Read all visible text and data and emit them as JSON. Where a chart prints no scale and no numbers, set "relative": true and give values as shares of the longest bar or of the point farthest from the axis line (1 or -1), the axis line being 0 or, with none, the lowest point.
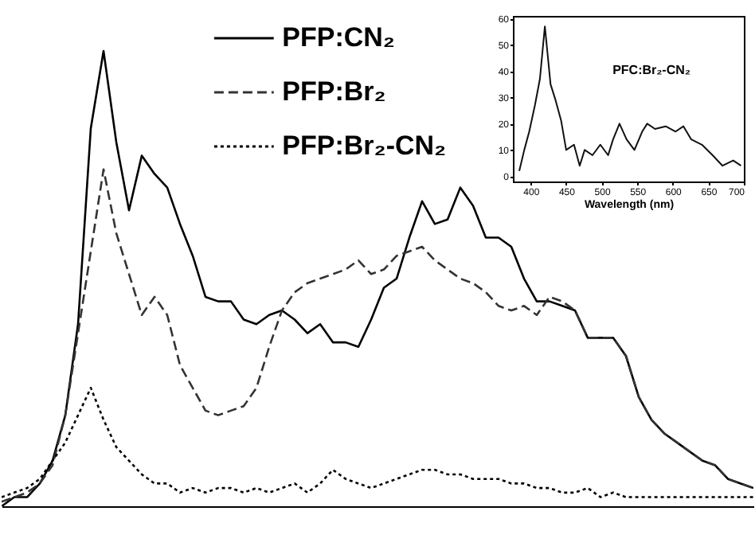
{
  "chart_data": [
    {
      "type": "line",
      "relative": true,
      "legend": "top",
      "categories": [
        null,
        null,
        null,
        null,
        null,
        null,
        null,
        null,
        null,
        null,
        null,
        null,
        null,
        null,
        null,
        null,
        null,
        null,
        null,
        null,
        null,
        null,
        null,
        null,
        null,
        null,
        null,
        null,
        null,
        null,
        null,
        null,
        null,
        null,
        null,
        null,
        null,
        null,
        null,
        null,
        null,
        null,
        null,
        null,
        null,
        null,
        null,
        null,
        null,
        null,
        null,
        null,
        null,
        null,
        null,
        null,
        null,
        null,
        null,
        null
      ],
      "series": [
        {
          "name": "PFP:CN₂",
          "color": "#000000",
          "line_style": "solid",
          "values": [
            0.0,
            0.02,
            0.02,
            0.05,
            0.1,
            0.2,
            0.4,
            0.83,
            1.0,
            0.8,
            0.65,
            0.77,
            0.73,
            0.7,
            0.62,
            0.55,
            0.46,
            0.45,
            0.45,
            0.41,
            0.4,
            0.42,
            0.43,
            0.41,
            0.38,
            0.4,
            0.36,
            0.36,
            0.35,
            0.41,
            0.48,
            0.5,
            0.59,
            0.67,
            0.62,
            0.63,
            0.7,
            0.66,
            0.59,
            0.59,
            0.57,
            0.5,
            0.45,
            0.45,
            0.44,
            0.43,
            0.37,
            0.37,
            0.37,
            0.33,
            0.24,
            0.19,
            0.16,
            0.14,
            0.12,
            0.1,
            0.09,
            0.06,
            0.05,
            0.04
          ]
        },
        {
          "name": "PFP:Br₂",
          "color": "#333333",
          "line_style": "dashed",
          "values": [
            0.01,
            0.02,
            0.03,
            0.05,
            0.09,
            0.2,
            0.38,
            0.56,
            0.74,
            0.6,
            0.51,
            0.42,
            0.46,
            0.42,
            0.31,
            0.26,
            0.21,
            0.2,
            0.21,
            0.22,
            0.26,
            0.35,
            0.43,
            0.47,
            0.49,
            0.5,
            0.51,
            0.52,
            0.54,
            0.51,
            0.52,
            0.55,
            0.56,
            0.57,
            0.54,
            0.52,
            0.5,
            0.49,
            0.47,
            0.44,
            0.43,
            0.44,
            0.42,
            0.46,
            0.45,
            0.43,
            0.37,
            0.37,
            0.37,
            0.33,
            0.24,
            0.19,
            0.16,
            0.14,
            0.12,
            0.1,
            0.09,
            0.06,
            0.05,
            0.04
          ]
        },
        {
          "name": "PFP:Br₂-CN₂",
          "color": "#000000",
          "line_style": "dotted",
          "values": [
            0.02,
            0.03,
            0.04,
            0.06,
            0.1,
            0.14,
            0.2,
            0.26,
            0.19,
            0.13,
            0.1,
            0.07,
            0.05,
            0.05,
            0.03,
            0.04,
            0.03,
            0.04,
            0.04,
            0.03,
            0.04,
            0.03,
            0.04,
            0.05,
            0.03,
            0.05,
            0.08,
            0.06,
            0.05,
            0.04,
            0.05,
            0.06,
            0.07,
            0.08,
            0.08,
            0.07,
            0.07,
            0.06,
            0.06,
            0.06,
            0.05,
            0.05,
            0.04,
            0.04,
            0.03,
            0.03,
            0.04,
            0.02,
            0.03,
            0.02,
            0.02,
            0.02,
            0.02,
            0.02,
            0.02,
            0.02,
            0.02,
            0.02,
            0.02,
            0.02
          ]
        }
      ]
    },
    {
      "type": "line",
      "xlabel": "Wavelength (nm)",
      "annotations": [
        "PFC:Br₂-CN₂"
      ],
      "xlim": [
        375,
        700
      ],
      "xticks": [
        400,
        450,
        500,
        550,
        600,
        650,
        700
      ],
      "ylim": [
        -2,
        61
      ],
      "yticks": [
        0,
        10,
        20,
        30,
        40,
        50,
        60
      ],
      "series": [
        {
          "color": "#111111",
          "x": [
            384,
            391,
            398,
            406,
            413,
            420,
            424,
            428,
            435,
            443,
            450,
            461,
            469,
            476,
            487,
            498,
            509,
            516,
            525,
            535,
            546,
            557,
            564,
            575,
            590,
            604,
            615,
            626,
            641,
            656,
            670,
            685,
            696
          ],
          "values": [
            2,
            10,
            17,
            27,
            37,
            57,
            46,
            35,
            29,
            21,
            10,
            12,
            4,
            10,
            8,
            12,
            8,
            14,
            20,
            14,
            10,
            17,
            20,
            18,
            19,
            17,
            19,
            14,
            12,
            8,
            4,
            6,
            4
          ]
        }
      ]
    }
  ]
}
